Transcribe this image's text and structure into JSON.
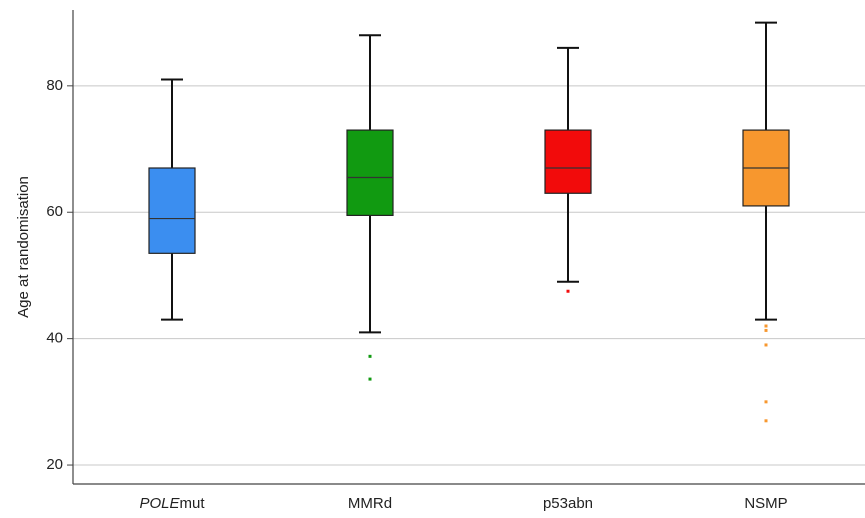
{
  "chart_data": {
    "type": "boxplot",
    "title": "",
    "xlabel": "",
    "ylabel": "Age at randomisation",
    "ylim": [
      17,
      92
    ],
    "yticks": [
      20,
      40,
      60,
      80
    ],
    "grid": "horizontal",
    "categories": [
      {
        "label_italic": "POLE",
        "label_rest": "mut"
      },
      {
        "label_italic": "",
        "label_rest": "MMRd"
      },
      {
        "label_italic": "",
        "label_rest": "p53abn"
      },
      {
        "label_italic": "",
        "label_rest": "NSMP"
      }
    ],
    "boxes": [
      {
        "whisker_low": 43,
        "q1": 53.5,
        "median": 59,
        "q3": 67,
        "whisker_high": 81,
        "color": "#3b8ef0",
        "outliers": []
      },
      {
        "whisker_low": 41,
        "q1": 59.5,
        "median": 65.5,
        "q3": 73,
        "whisker_high": 88,
        "color": "#119a11",
        "outliers": [
          37.2,
          33.6
        ]
      },
      {
        "whisker_low": 49,
        "q1": 63,
        "median": 67,
        "q3": 73,
        "whisker_high": 86,
        "color": "#f20b0b",
        "outliers": [
          47.5
        ]
      },
      {
        "whisker_low": 43,
        "q1": 61,
        "median": 67,
        "q3": 73,
        "whisker_high": 90,
        "color": "#f7972e",
        "outliers": [
          42,
          41.3,
          39,
          30,
          27
        ]
      }
    ]
  }
}
